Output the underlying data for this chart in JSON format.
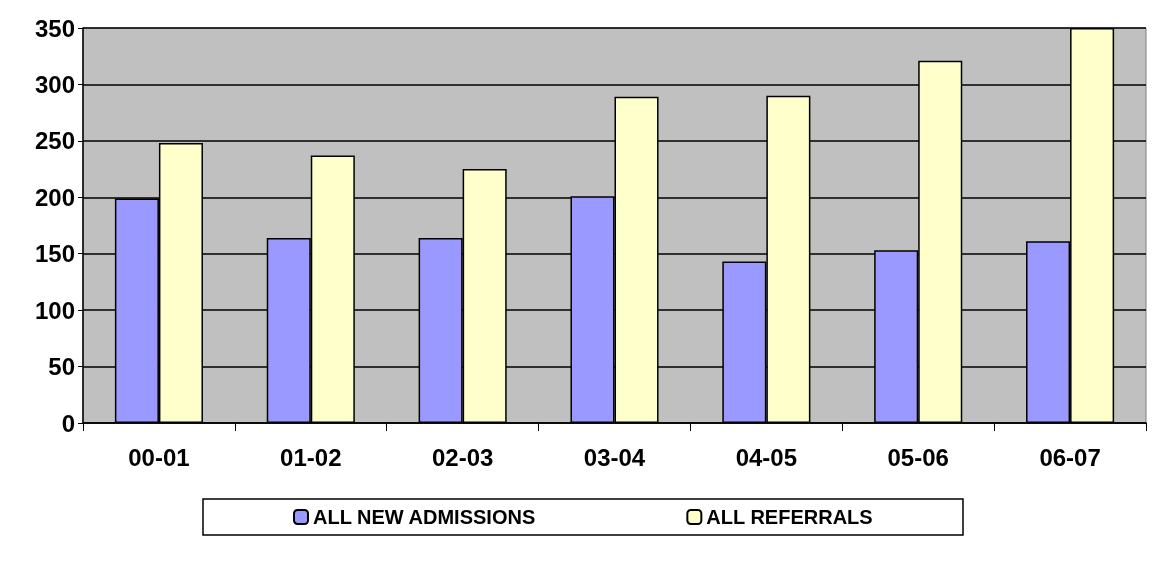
{
  "chart_data": {
    "type": "bar",
    "categories": [
      "00-01",
      "01-02",
      "02-03",
      "03-04",
      "04-05",
      "05-06",
      "06-07"
    ],
    "series": [
      {
        "name": "ALL NEW ADMISSIONS",
        "color": "#9999ff",
        "values": [
          199,
          164,
          164,
          201,
          143,
          153,
          161
        ]
      },
      {
        "name": "ALL REFERRALS",
        "color": "#ffffcc",
        "values": [
          248,
          237,
          225,
          289,
          290,
          321,
          350
        ]
      }
    ],
    "ylim": [
      0,
      350
    ],
    "yticks": [
      0,
      50,
      100,
      150,
      200,
      250,
      300,
      350
    ],
    "grid": "y",
    "legend": "bottom"
  }
}
